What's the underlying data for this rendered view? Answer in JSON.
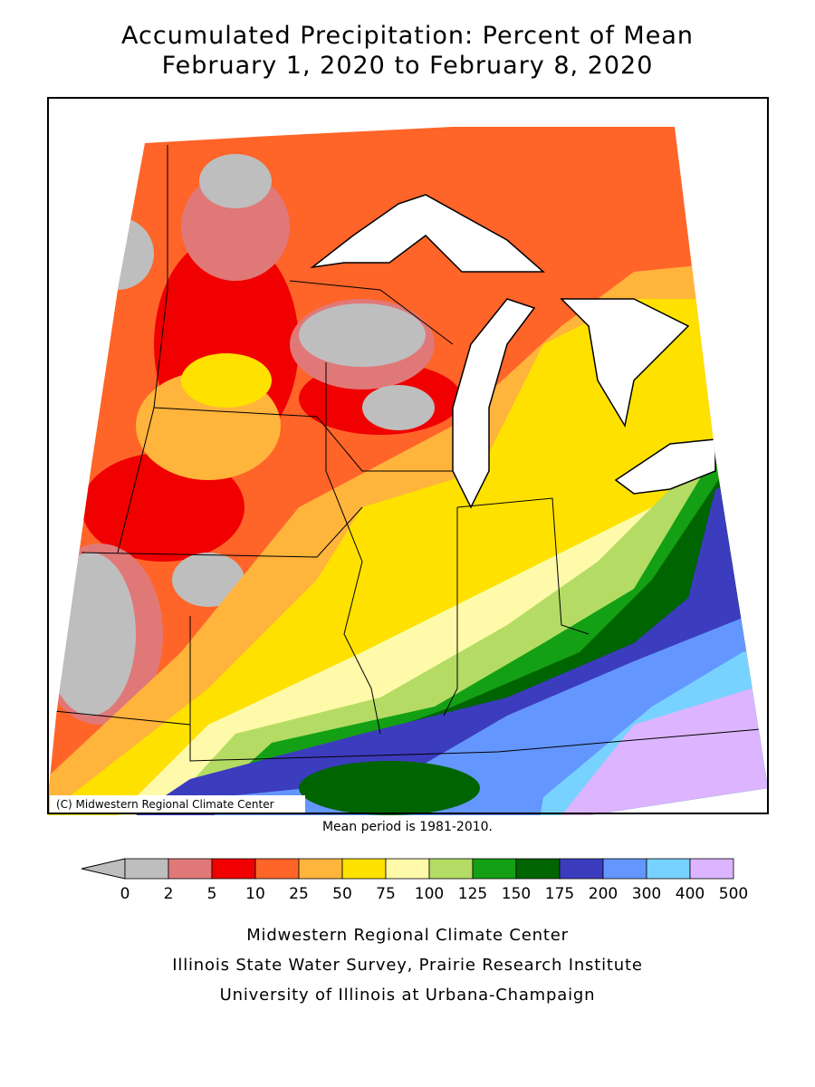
{
  "header": {
    "title": "Accumulated Precipitation: Percent of Mean",
    "subtitle": "February 1, 2020 to February 8, 2020"
  },
  "map": {
    "credit": "(C) Midwestern Regional Climate Center",
    "note": "Mean period is 1981-2010."
  },
  "legend": {
    "ticks": [
      0,
      2,
      5,
      10,
      25,
      50,
      75,
      100,
      125,
      150,
      175,
      200,
      300,
      400,
      500
    ],
    "colors": [
      "#bebebe",
      "#e17878",
      "#f00000",
      "#ff6428",
      "#ffb43c",
      "#ffe100",
      "#fffaaa",
      "#b4dc64",
      "#14a014",
      "#006400",
      "#3c3cbe",
      "#6496ff",
      "#78d2ff",
      "#dcb4ff"
    ]
  },
  "footer": {
    "lines": [
      "Midwestern Regional Climate Center",
      "Illinois State Water Survey, Prairie Research Institute",
      "University of Illinois at Urbana-Champaign"
    ]
  }
}
